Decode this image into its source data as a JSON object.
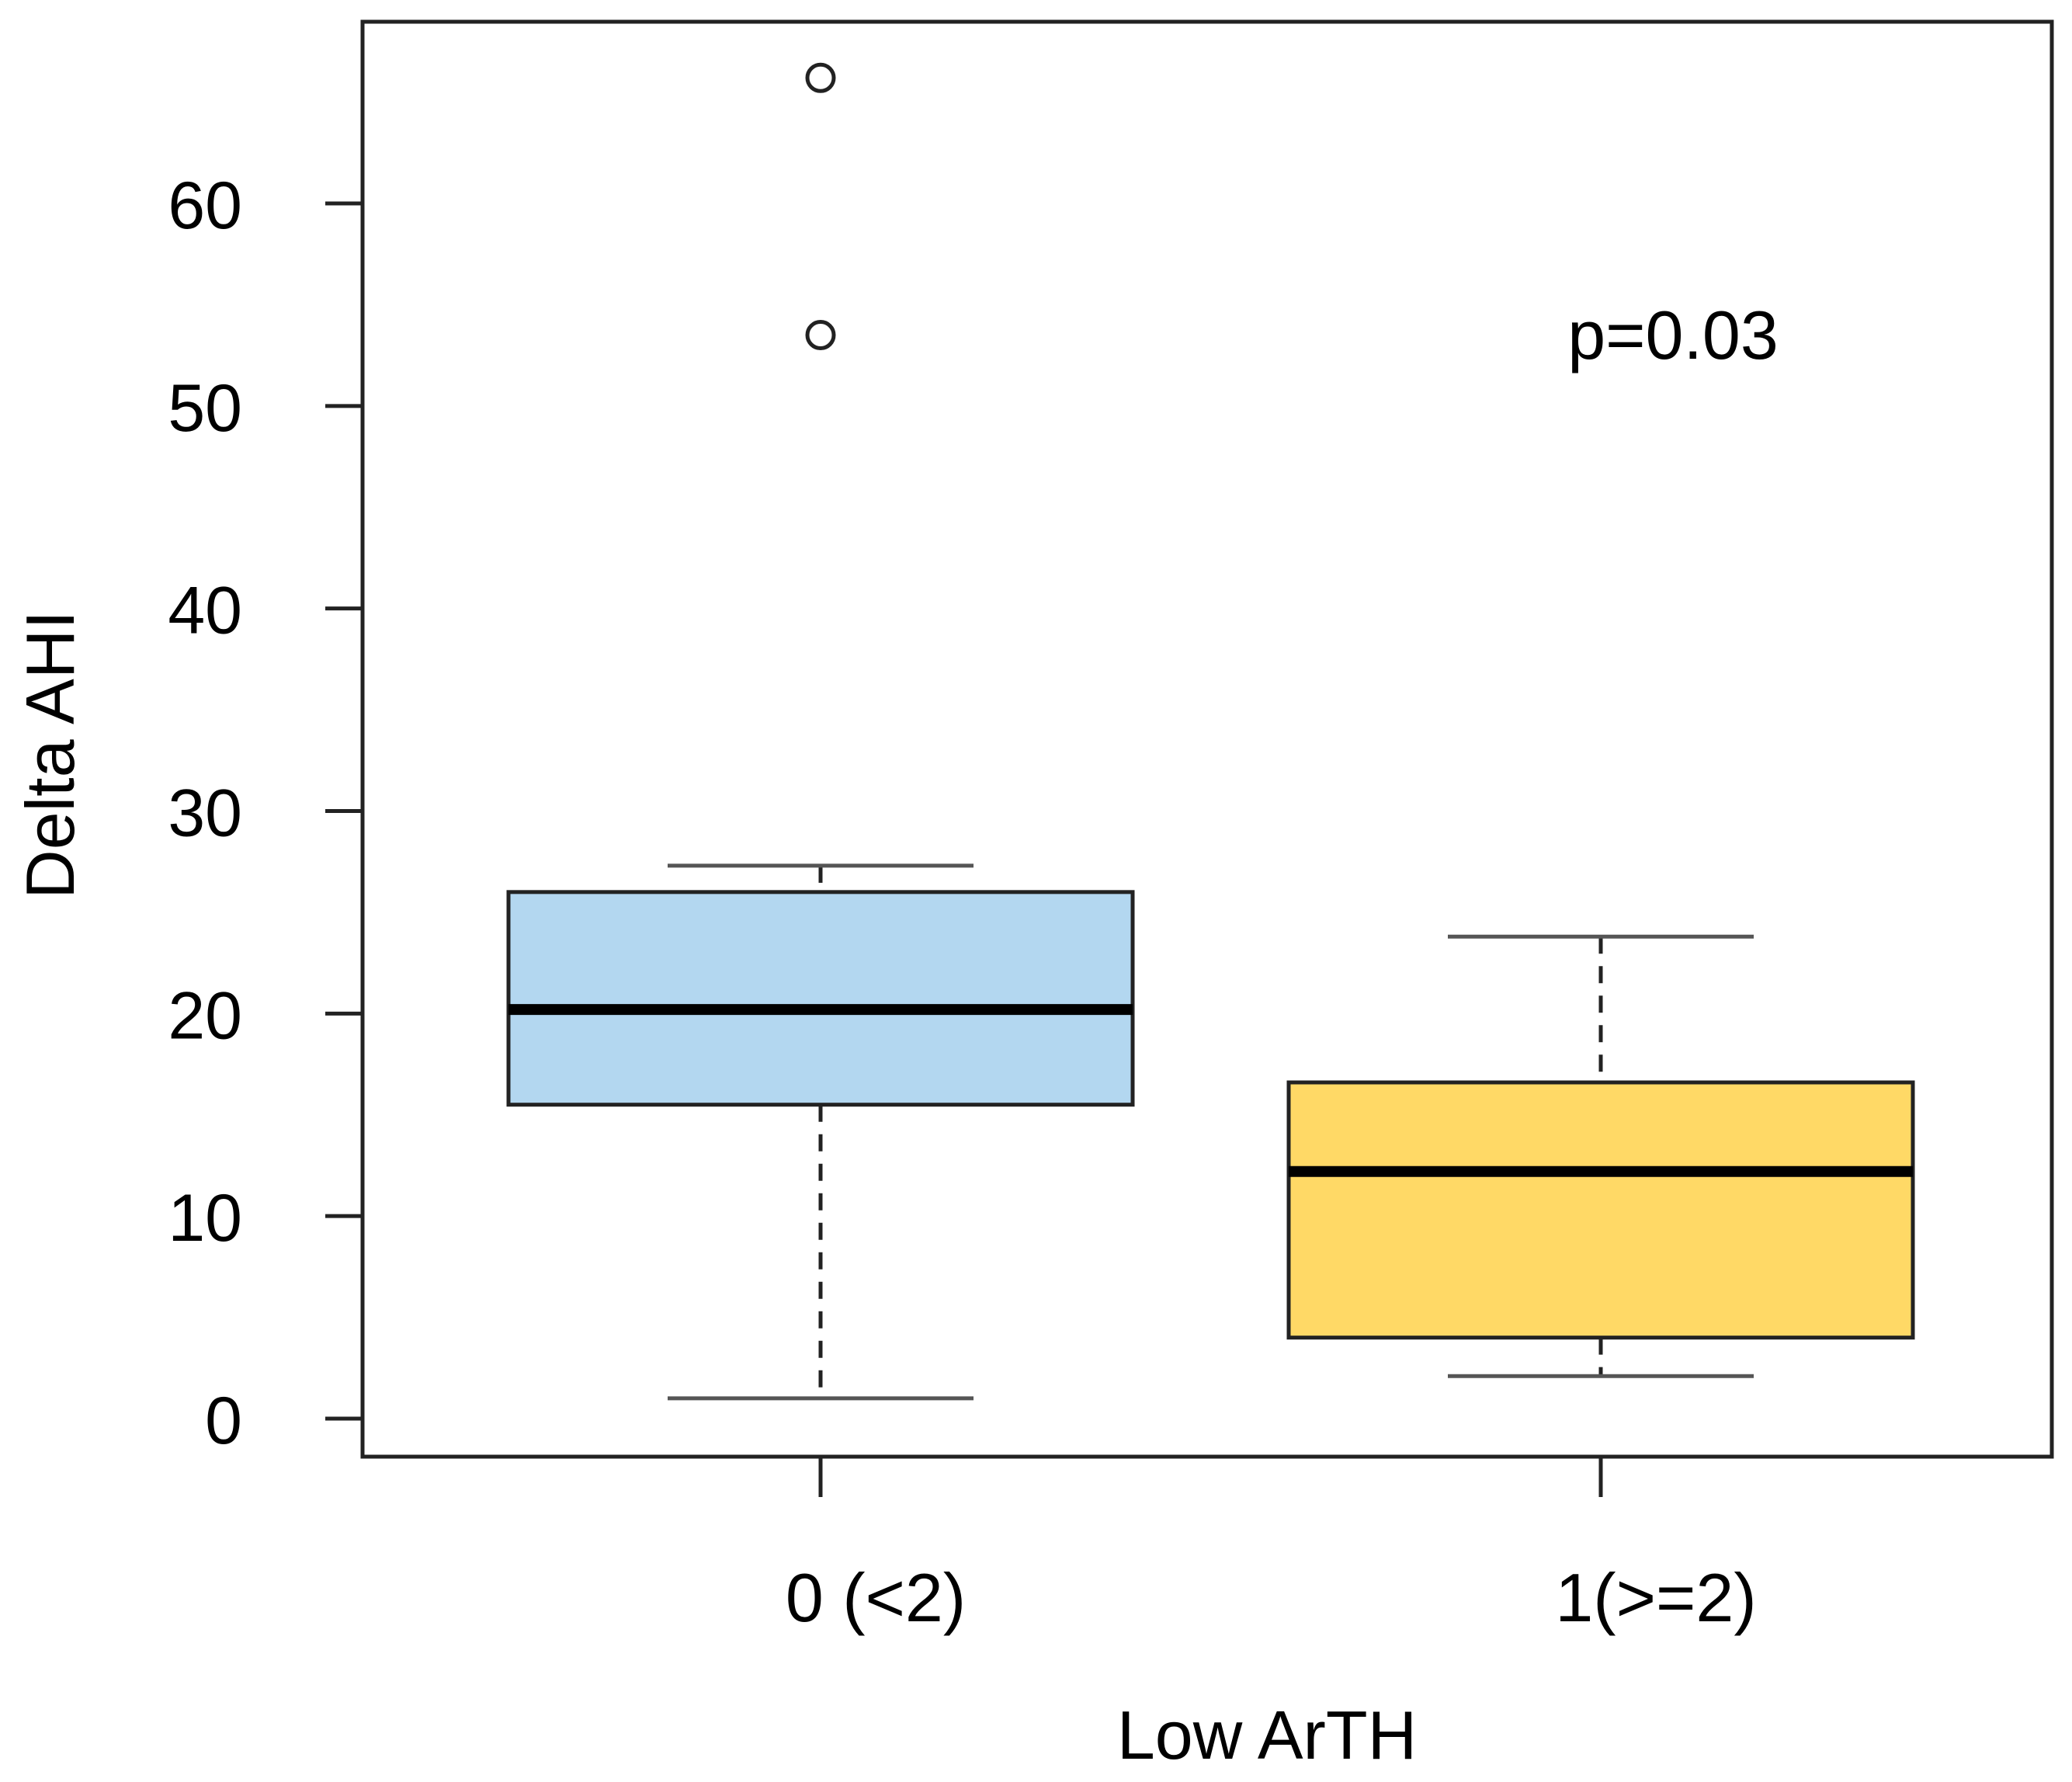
{
  "chart_data": {
    "type": "boxplot",
    "title": "",
    "xlabel": "Low ArTH",
    "ylabel": "Delta AHI",
    "ylim": [
      -1.8,
      69
    ],
    "yticks": [
      0,
      10,
      20,
      30,
      40,
      50,
      60
    ],
    "ytick_labels": [
      "0",
      "10",
      "20",
      "30",
      "40",
      "50",
      "60"
    ],
    "categories": [
      "0 (<2)",
      "1(>=2)"
    ],
    "boxes": [
      {
        "name": "0 (<2)",
        "whisker_low": 1,
        "q1": 15.5,
        "median": 20.2,
        "q3": 26,
        "whisker_high": 27.3,
        "outliers": [
          66.2,
          53.5
        ],
        "color": "#b3d7f0"
      },
      {
        "name": "1(>=2)",
        "whisker_low": 2.1,
        "q1": 4,
        "median": 12.2,
        "q3": 16.6,
        "whisker_high": 23.8,
        "outliers": [],
        "color": "#ffd966"
      }
    ],
    "annotation": "p=0.03",
    "grid": false,
    "legend": "none"
  }
}
